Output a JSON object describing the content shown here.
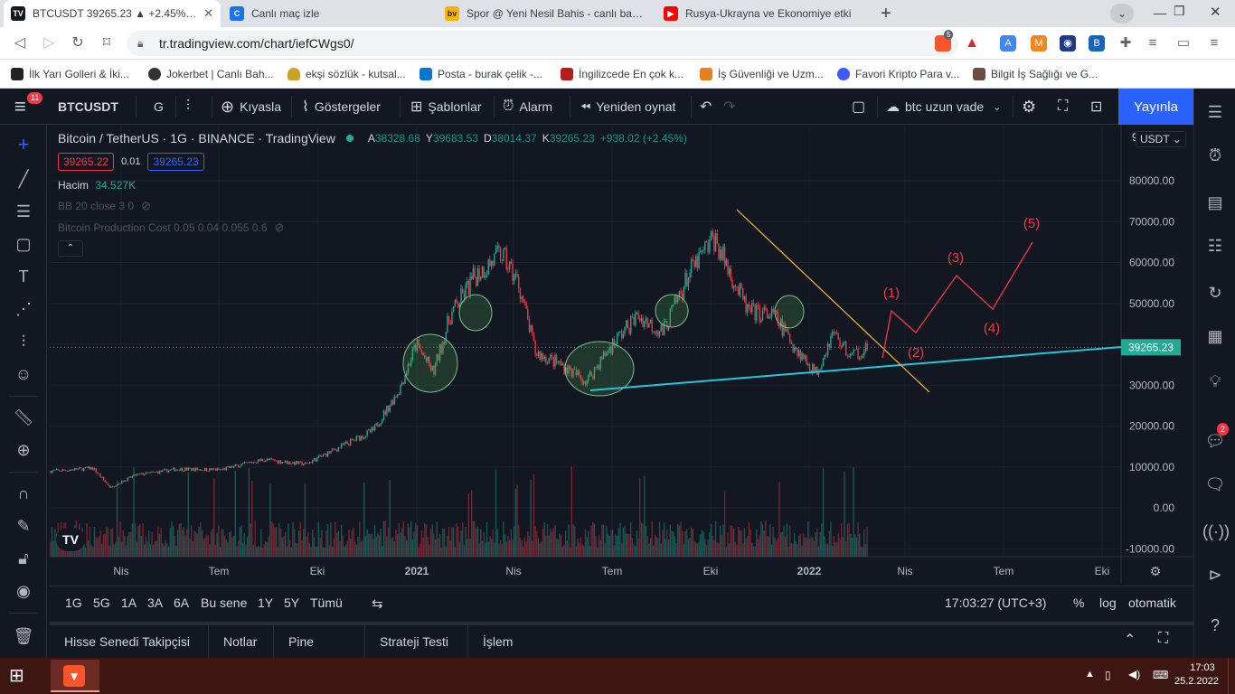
{
  "browser": {
    "tabs": [
      {
        "title": "BTCUSDT 39265.23 ▲ +2.45% btc",
        "active": true,
        "fav": "TV"
      },
      {
        "title": "Canlı maç izle",
        "active": false,
        "fav": "C"
      },
      {
        "title": "Spor @ Yeni Nesil Bahis - canlı bahis -",
        "active": false,
        "fav": "bv"
      },
      {
        "title": "Rusya-Ukrayna ve Ekonomiye etki",
        "active": false,
        "fav": "▶"
      }
    ],
    "new_tab": "+",
    "url": "tr.tradingview.com/chart/iefCWgs0/",
    "brave_badge": "5",
    "bookmarks": [
      "İlk Yarı Golleri & İki...",
      "Jokerbet | Canlı Bah...",
      "ekşi sözlük - kutsal...",
      "Posta - burak çelik -...",
      "İngilizcede En çok k...",
      "İş Güvenliği ve Uzm...",
      "Favori Kripto Para v...",
      "Bilgit İş Sağlığı ve G..."
    ]
  },
  "toolbar": {
    "menu_badge": "11",
    "symbol": "BTCUSDT",
    "interval": "G",
    "compare": "Kıyasla",
    "indicators": "Göstergeler",
    "templates": "Şablonlar",
    "alert": "Alarm",
    "replay": "Yeniden oynat",
    "layout_name": "btc uzun vade",
    "publish": "Yayınla"
  },
  "legend": {
    "title": "Bitcoin / TetherUS · 1G · BINANCE · TradingView",
    "ohlc": [
      {
        "k": "A",
        "v": "38328.68"
      },
      {
        "k": "Y",
        "v": "39683.53"
      },
      {
        "k": "D",
        "v": "38014.37"
      },
      {
        "k": "K",
        "v": "39265.23"
      }
    ],
    "change": "+938.02 (+2.45%)",
    "bid": "39265.22",
    "spread": "0.01",
    "ask": "39265.23",
    "volume_label": "Hacim",
    "volume_value": "34.527K",
    "indicator1": "BB 20 close 3 0",
    "indicator2": "Bitcoin Production Cost 0.05 0.04 0.055 0.6"
  },
  "chart_data": {
    "type": "line",
    "currency": "USDT",
    "price_axis_labels": [
      "80000.00",
      "70000.00",
      "60000.00",
      "50000.00",
      "40000.00",
      "30000.00",
      "20000.00",
      "10000.00",
      "0.00",
      "-10000.00"
    ],
    "time_axis_labels": [
      "Nis",
      "Tem",
      "Eki",
      "2021",
      "Nis",
      "Tem",
      "Eki",
      "2022",
      "Nis",
      "Tem",
      "Eki"
    ],
    "ylim": [
      -10000,
      85000
    ],
    "last_price": "39265.23",
    "price_series": [
      {
        "t": 0,
        "p": 9000
      },
      {
        "t": 0.05,
        "p": 9700
      },
      {
        "t": 0.07,
        "p": 5000
      },
      {
        "t": 0.1,
        "p": 8000
      },
      {
        "t": 0.15,
        "p": 9500
      },
      {
        "t": 0.2,
        "p": 9300
      },
      {
        "t": 0.25,
        "p": 11800
      },
      {
        "t": 0.3,
        "p": 10700
      },
      {
        "t": 0.33,
        "p": 13800
      },
      {
        "t": 0.38,
        "p": 19000
      },
      {
        "t": 0.41,
        "p": 29000
      },
      {
        "t": 0.43,
        "p": 40000
      },
      {
        "t": 0.45,
        "p": 33000
      },
      {
        "t": 0.47,
        "p": 47000
      },
      {
        "t": 0.5,
        "p": 57000
      },
      {
        "t": 0.53,
        "p": 62000
      },
      {
        "t": 0.55,
        "p": 55000
      },
      {
        "t": 0.57,
        "p": 38000
      },
      {
        "t": 0.6,
        "p": 35000
      },
      {
        "t": 0.63,
        "p": 31000
      },
      {
        "t": 0.66,
        "p": 40000
      },
      {
        "t": 0.69,
        "p": 47000
      },
      {
        "t": 0.72,
        "p": 43000
      },
      {
        "t": 0.75,
        "p": 57000
      },
      {
        "t": 0.78,
        "p": 66000
      },
      {
        "t": 0.8,
        "p": 57000
      },
      {
        "t": 0.82,
        "p": 48000
      },
      {
        "t": 0.85,
        "p": 47000
      },
      {
        "t": 0.88,
        "p": 38000
      },
      {
        "t": 0.9,
        "p": 33000
      },
      {
        "t": 0.92,
        "p": 43000
      },
      {
        "t": 0.94,
        "p": 37000
      },
      {
        "t": 0.96,
        "p": 39265
      }
    ],
    "wave_labels": [
      "(1)",
      "(2)",
      "(3)",
      "(4)",
      "(5)"
    ]
  },
  "bottom": {
    "ranges": [
      "1G",
      "5G",
      "1A",
      "3A",
      "6A",
      "Bu sene",
      "1Y",
      "5Y",
      "Tümü"
    ],
    "time": "17:03:27 (UTC+3)",
    "percent": "%",
    "log": "log",
    "auto": "otomatik"
  },
  "panels": [
    "Hisse Senedi Takipçisi",
    "Notlar",
    "Pine Editör",
    "Strateji Testi",
    "İşlem Paneli"
  ],
  "right_bar": {
    "chat_badge": "2"
  },
  "taskbar": {
    "time": "17:03",
    "date": "25.2.2022"
  }
}
